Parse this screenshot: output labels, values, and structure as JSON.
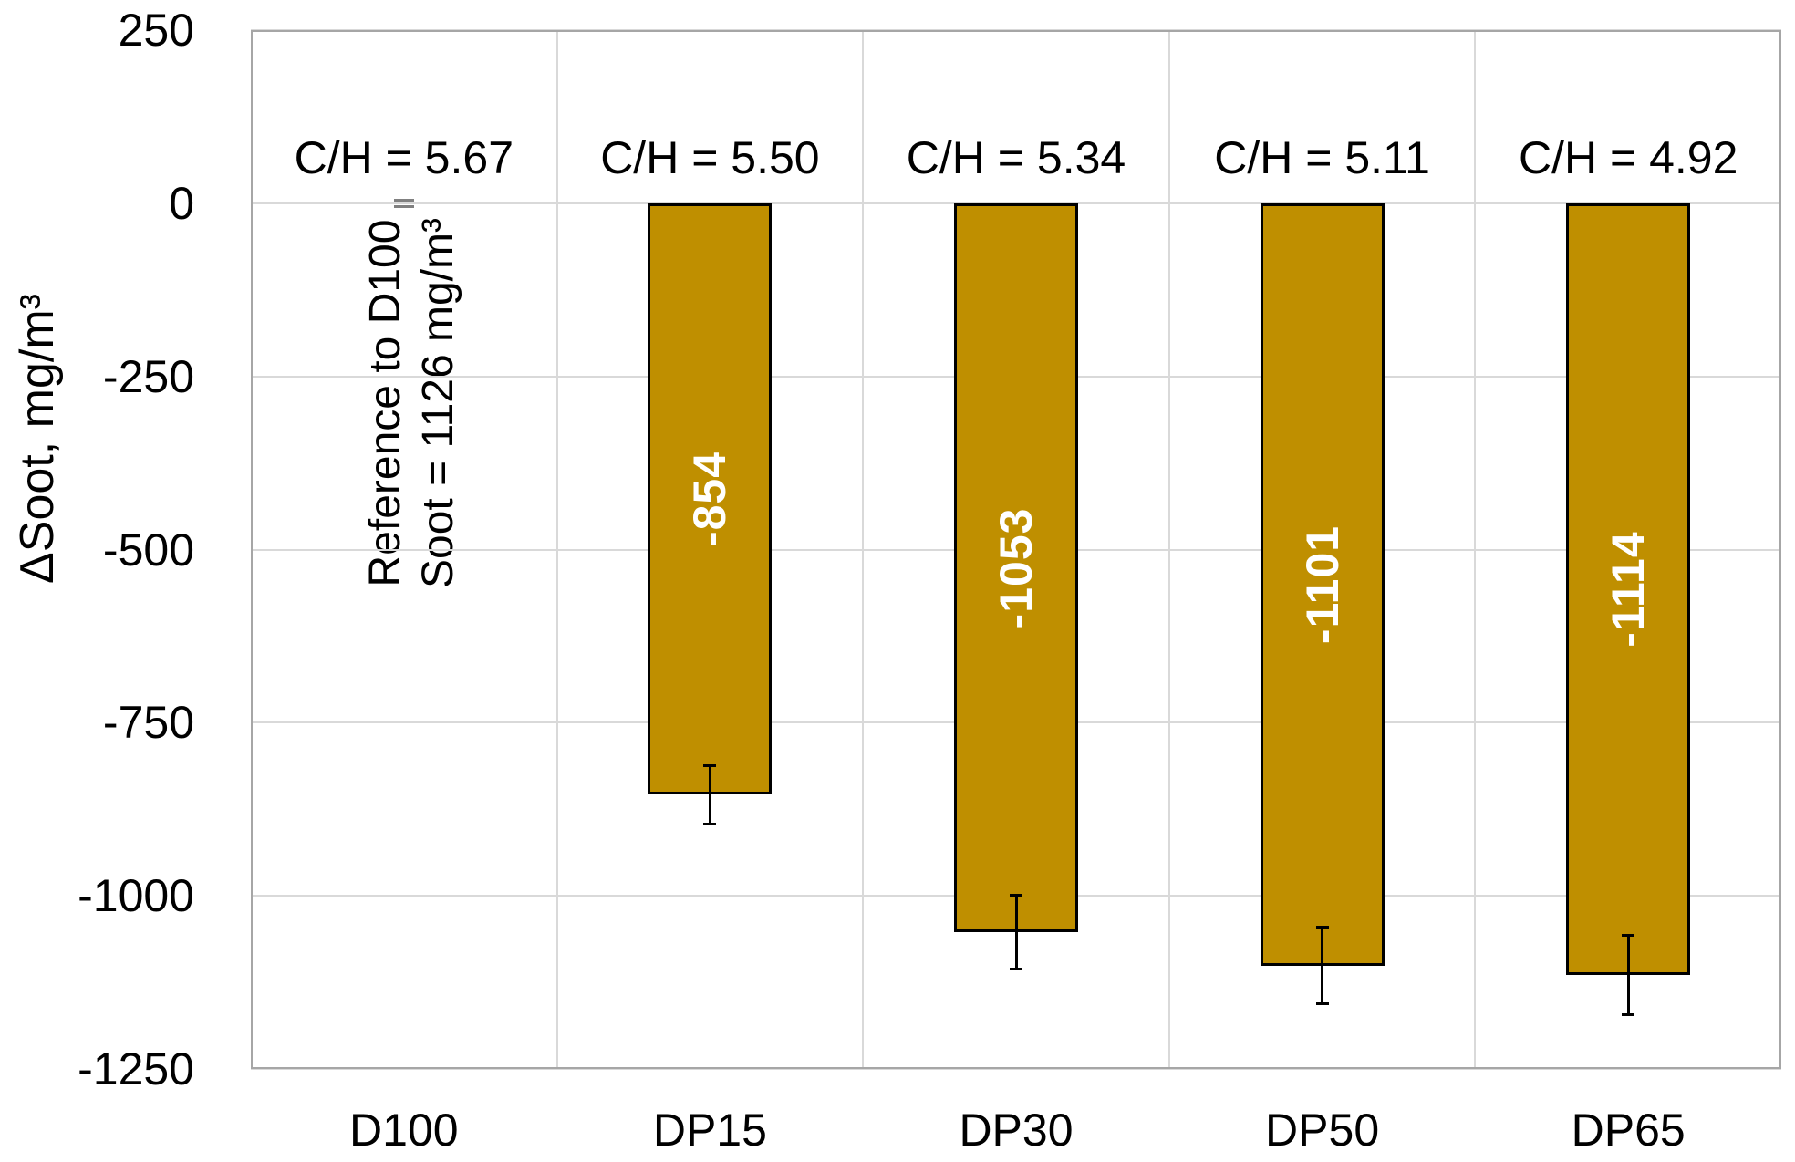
{
  "chart_data": {
    "type": "bar",
    "title": "",
    "xlabel": "",
    "ylabel": "ΔSoot, mg/m³",
    "categories": [
      "D100",
      "DP15",
      "DP30",
      "DP50",
      "DP65"
    ],
    "values": [
      0,
      -854,
      -1053,
      -1101,
      -1114
    ],
    "bar_labels": [
      "",
      "-854",
      "-1053",
      "-1101",
      "-1114"
    ],
    "error_bars": [
      0,
      43,
      54,
      56,
      58
    ],
    "group_labels": [
      "C/H = 5.67",
      "C/H = 5.50",
      "C/H = 5.34",
      "C/H = 5.11",
      "C/H = 4.92"
    ],
    "ylim": [
      -1250,
      250
    ],
    "yticks": [
      250,
      0,
      -250,
      -500,
      -750,
      -1000,
      -1250
    ],
    "grid": true,
    "legend": false,
    "annotation": {
      "line1": "Reference to D100",
      "line2": "Soot = 1126 mg/m³"
    },
    "colors": {
      "bar_fill": "#BF8F00",
      "bar_border": "#000000",
      "gridline": "#D9D9D9",
      "plot_border": "#A6A6A6",
      "bar_label_text": "#FFFFFF",
      "error_bar": "#000000",
      "zero_dash": "#808080",
      "text": "#000000"
    }
  }
}
